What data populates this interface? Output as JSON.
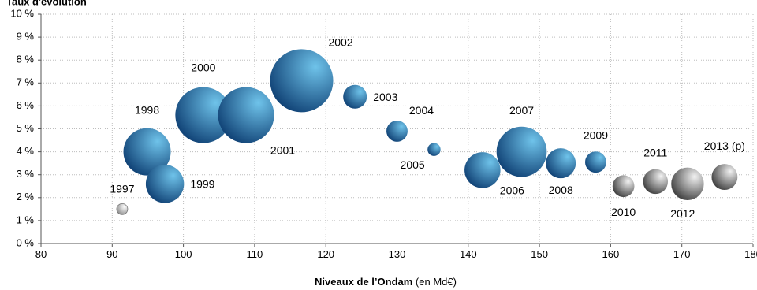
{
  "chart_data": {
    "type": "scatter",
    "subtype": "bubble",
    "ylabel": "Taux d'évolution",
    "xlabel": {
      "bold": "Niveaux de l’Ondam",
      "normal": " (en Md€)"
    },
    "xlim": [
      80,
      180
    ],
    "ylim": [
      0,
      10
    ],
    "x_ticks": [
      "80",
      "90",
      "100",
      "110",
      "120",
      "130",
      "140",
      "150",
      "160",
      "170",
      "180"
    ],
    "y_ticks": [
      "0 %",
      "1 %",
      "2 %",
      "3 %",
      "4 %",
      "5 %",
      "6 %",
      "7 %",
      "8 %",
      "9 %",
      "10 %"
    ],
    "grid": true,
    "legend": "none",
    "colors": {
      "blue_light": "#6fc3ea",
      "blue_dark": "#0e3f73",
      "grey_light": "#f2f2f2",
      "grey_dark": "#3a3a3a",
      "white_light": "#ffffff",
      "white_dark": "#8a8a8a"
    },
    "points": [
      {
        "label": "1997",
        "x": 91.4,
        "y": 1.5,
        "size": 0.2,
        "color": "white"
      },
      {
        "label": "1998",
        "x": 94.9,
        "y": 4.0,
        "size": 4.0,
        "color": "blue"
      },
      {
        "label": "1999",
        "x": 97.4,
        "y": 2.6,
        "size": 2.6,
        "color": "blue"
      },
      {
        "label": "2000",
        "x": 102.8,
        "y": 5.6,
        "size": 5.6,
        "color": "blue"
      },
      {
        "label": "2001",
        "x": 108.8,
        "y": 5.6,
        "size": 5.6,
        "color": "blue"
      },
      {
        "label": "2002",
        "x": 116.6,
        "y": 7.1,
        "size": 7.1,
        "color": "blue"
      },
      {
        "label": "2003",
        "x": 124.1,
        "y": 6.4,
        "size": 1.0,
        "color": "blue"
      },
      {
        "label": "2004",
        "x": 130.0,
        "y": 4.9,
        "size": 0.8,
        "color": "blue"
      },
      {
        "label": "2005",
        "x": 135.2,
        "y": 4.1,
        "size": 0.3,
        "color": "blue"
      },
      {
        "label": "2006",
        "x": 142.0,
        "y": 3.2,
        "size": 2.3,
        "color": "blue"
      },
      {
        "label": "2007",
        "x": 147.5,
        "y": 4.0,
        "size": 4.5,
        "color": "blue"
      },
      {
        "label": "2008",
        "x": 153.0,
        "y": 3.5,
        "size": 1.6,
        "color": "blue"
      },
      {
        "label": "2009",
        "x": 157.9,
        "y": 3.55,
        "size": 0.8,
        "color": "blue"
      },
      {
        "label": "2010",
        "x": 161.8,
        "y": 2.5,
        "size": 0.85,
        "color": "grey"
      },
      {
        "label": "2011",
        "x": 166.3,
        "y": 2.7,
        "size": 1.1,
        "color": "grey"
      },
      {
        "label": "2012",
        "x": 170.8,
        "y": 2.6,
        "size": 1.9,
        "color": "grey"
      },
      {
        "label": "2013 (p)",
        "x": 176.0,
        "y": 2.9,
        "size": 1.2,
        "color": "grey"
      }
    ]
  }
}
